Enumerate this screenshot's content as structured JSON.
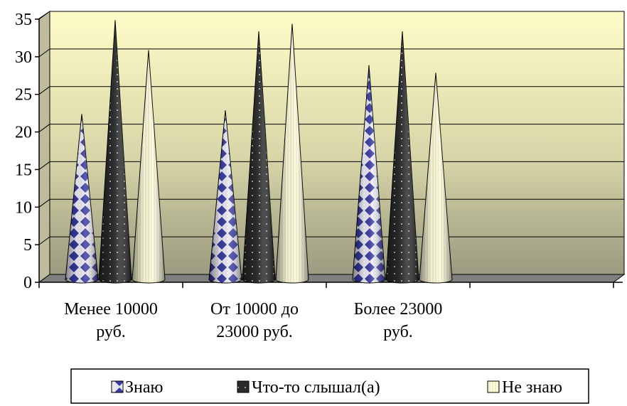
{
  "chart_data": {
    "type": "bar",
    "shape": "cone",
    "categories": [
      [
        "Менее 10000",
        "руб."
      ],
      [
        "От 10000 до",
        "23000 руб."
      ],
      [
        "Более 23000",
        "руб."
      ],
      [
        "",
        ""
      ]
    ],
    "series": [
      {
        "name": "Знаю",
        "values": [
          22,
          22.5,
          28.5,
          null
        ]
      },
      {
        "name": "Что-то слышал(а)",
        "values": [
          34.5,
          33,
          33,
          null
        ]
      },
      {
        "name": "Не знаю",
        "values": [
          30.5,
          34,
          27.5,
          null
        ]
      }
    ],
    "ylim": [
      0,
      35
    ],
    "yticks": [
      0,
      5,
      10,
      15,
      20,
      25,
      30,
      35
    ],
    "grid": true,
    "legend_position": "bottom",
    "colors": {
      "wall_top": "#fffcc8",
      "wall_bottom": "#9a9a80",
      "floor": "#808080",
      "series_patterns": [
        "blue-white diamond check",
        "black with white dots",
        "cream with vertical lines"
      ]
    }
  }
}
